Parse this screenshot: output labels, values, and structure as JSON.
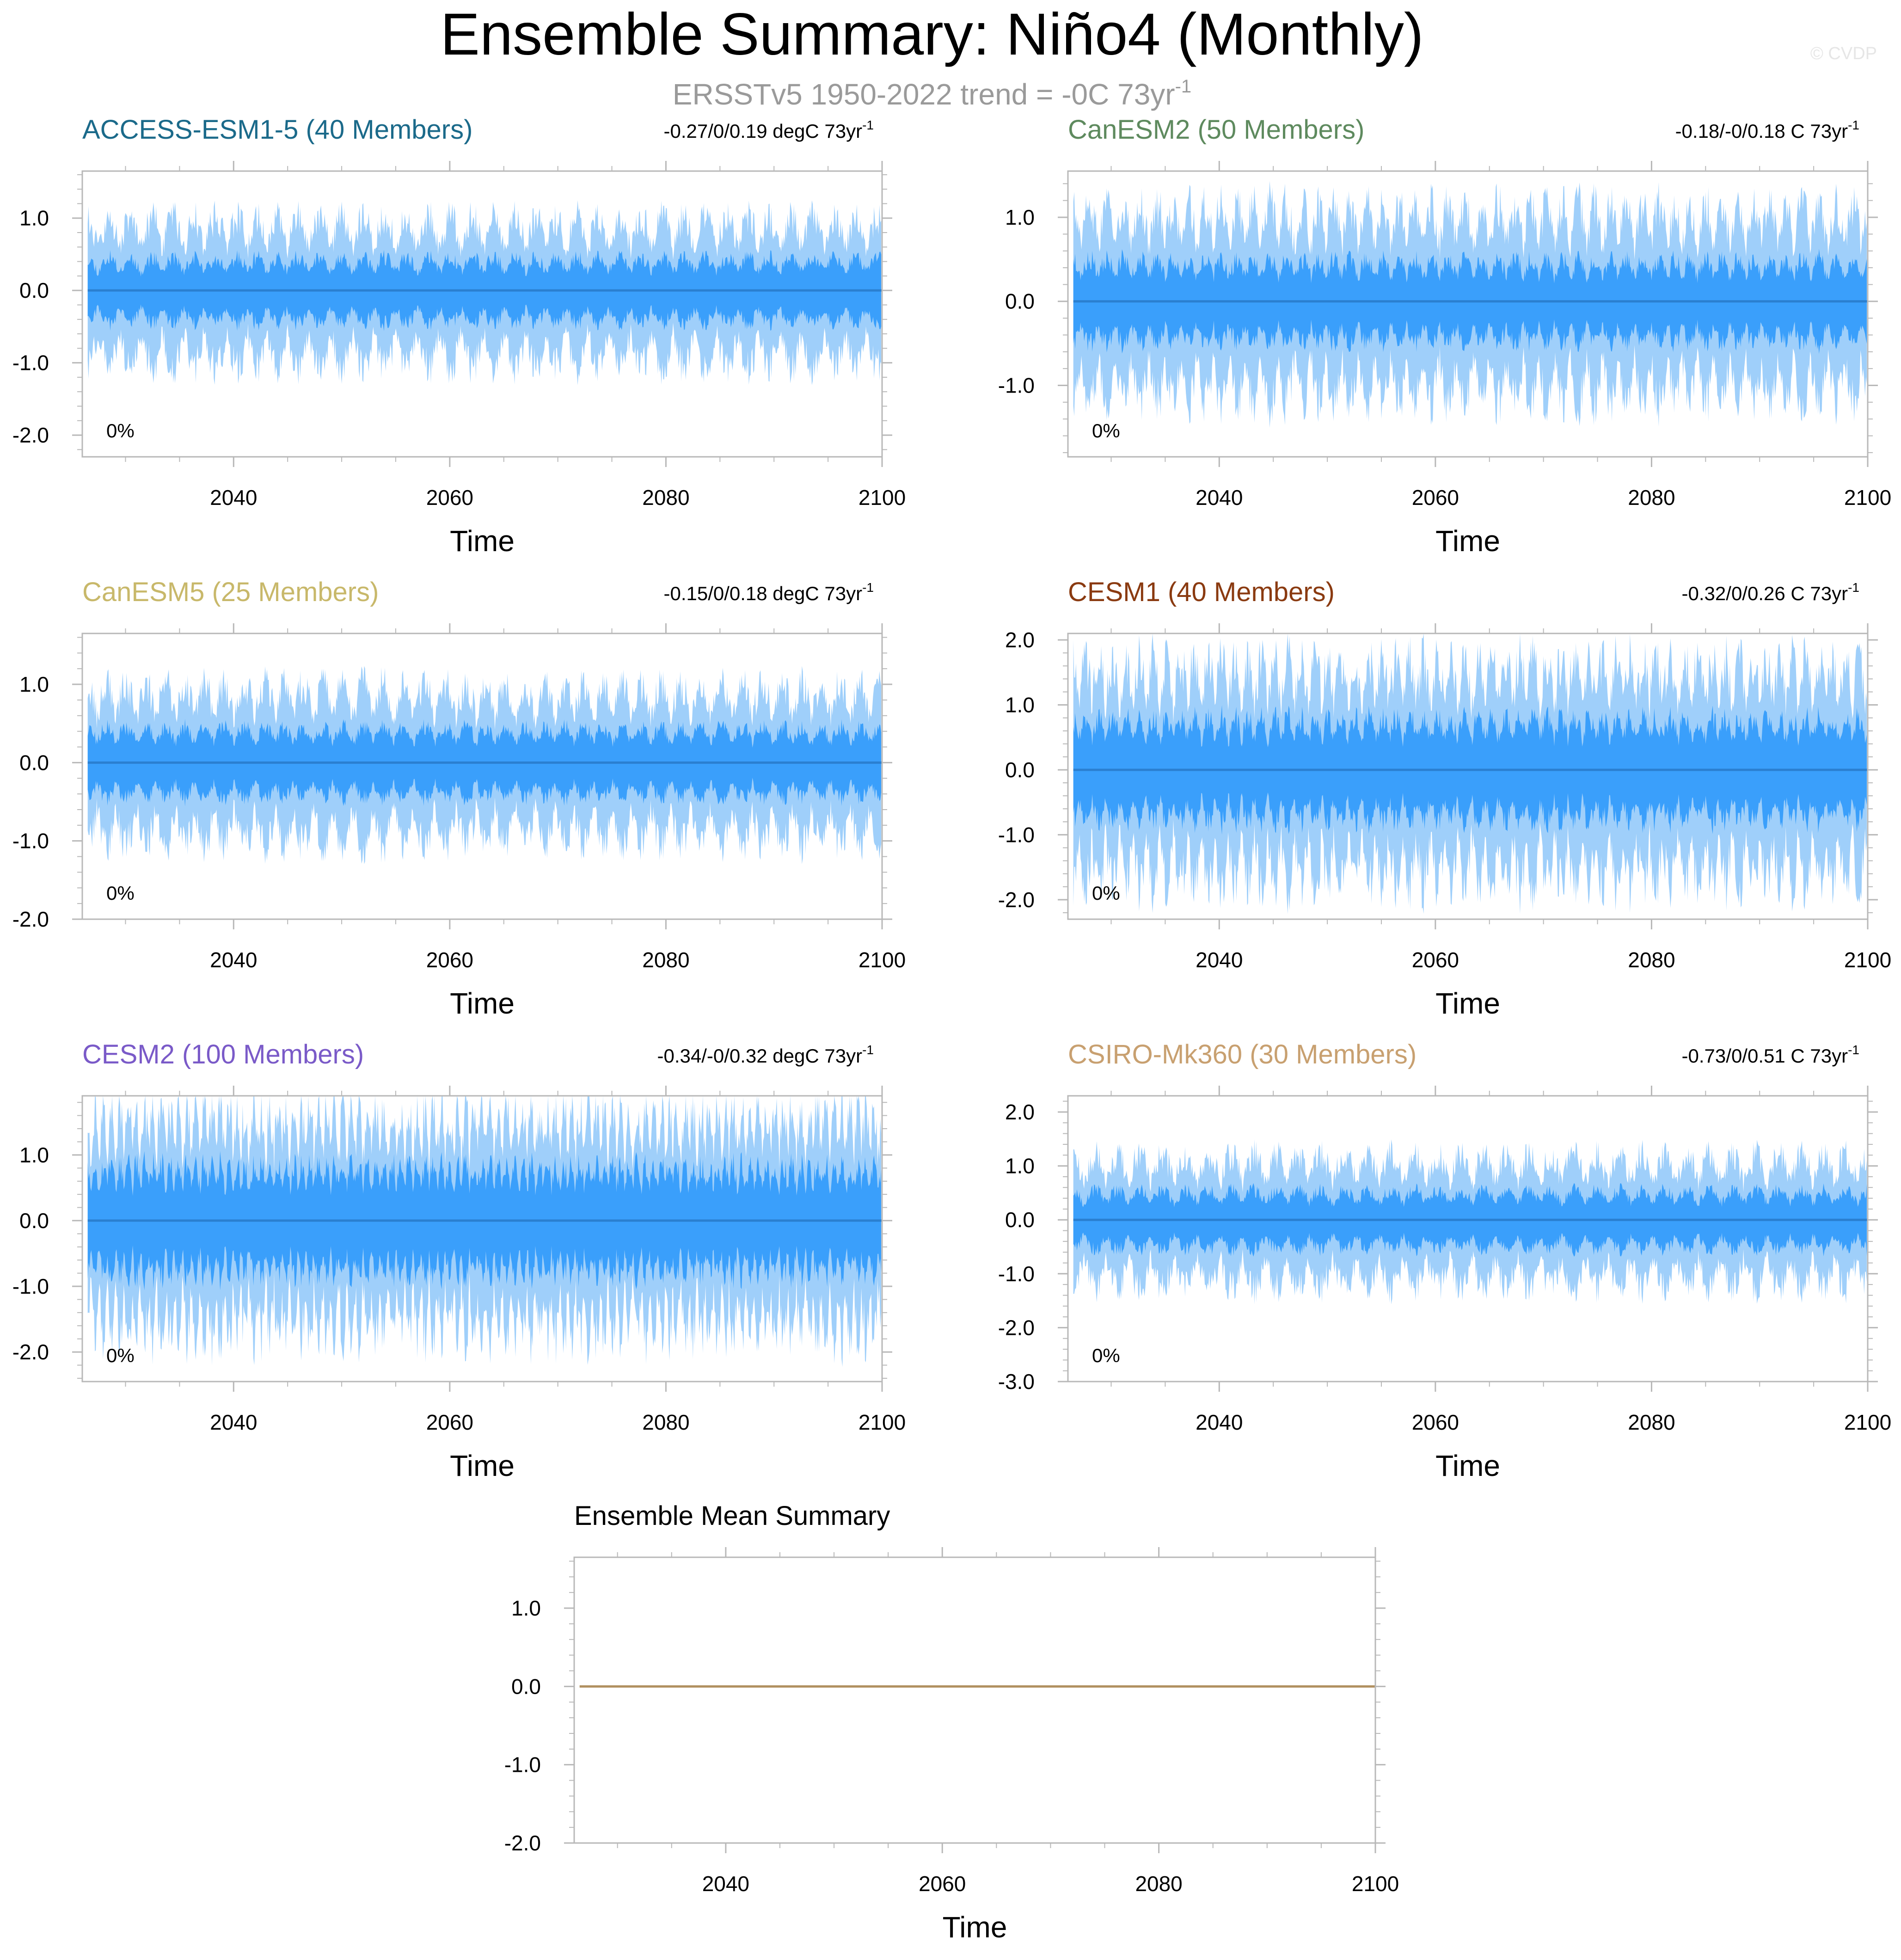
{
  "figure": {
    "title": "Ensemble Summary: Niño4 (Monthly)",
    "subtitle": "ERSSTv5 1950-2022 trend = -0C 73yr",
    "subtitle_sup": "-1",
    "watermark": "© CVDP"
  },
  "colors": {
    "band_outer": "#9fcffa",
    "band_inner": "#3a9ffb",
    "mean_line": "#2a7fd0",
    "ensemble_mean_line": "#b09060",
    "frame": "#b8b8b8",
    "text": "#000000"
  },
  "chart_data": [
    {
      "type": "area",
      "title": "ACCESS-ESM1-5 (40 Members)",
      "title_color": "#1b6a8a",
      "trend_label": "-0.27/0/0.19 degC 73yr",
      "trend_sup": "-1",
      "pct_label": "0%",
      "xlabel": "Time",
      "xlim": [
        2026,
        2100
      ],
      "xticks": [
        2040,
        2060,
        2080,
        2100
      ],
      "xtick_labels": [
        "2040",
        "2060",
        "2080",
        "2100"
      ],
      "ylim": [
        -2.3,
        1.65
      ],
      "yticks": [
        -2.0,
        -1.0,
        0.0,
        1.0
      ],
      "ytick_labels": [
        "-2.0",
        "-1.0",
        "0.0",
        "1.0"
      ],
      "mean": 0.0,
      "outer_amp": 1.0,
      "inner_amp": 0.45,
      "period_months": 48,
      "seed": 11,
      "grid": false
    },
    {
      "type": "area",
      "title": "CanESM2 (50 Members)",
      "title_color": "#5e8a5e",
      "trend_label": "-0.18/-0/0.18 C 73yr",
      "trend_sup": "-1",
      "pct_label": "0%",
      "xlabel": "Time",
      "xlim": [
        2026,
        2100
      ],
      "xticks": [
        2040,
        2060,
        2080,
        2100
      ],
      "xtick_labels": [
        "2040",
        "2060",
        "2080",
        "2100"
      ],
      "ylim": [
        -1.85,
        1.55
      ],
      "yticks": [
        -1.0,
        0.0,
        1.0
      ],
      "ytick_labels": [
        "-1.0",
        "0.0",
        "1.0"
      ],
      "mean": 0.0,
      "outer_amp": 1.15,
      "inner_amp": 0.5,
      "period_months": 36,
      "seed": 23,
      "grid": false
    },
    {
      "type": "area",
      "title": "CanESM5 (25 Members)",
      "title_color": "#c8b86a",
      "trend_label": "-0.15/0/0.18 degC 73yr",
      "trend_sup": "-1",
      "pct_label": "0%",
      "xlabel": "Time",
      "xlim": [
        2026,
        2100
      ],
      "xticks": [
        2040,
        2060,
        2080,
        2100
      ],
      "xtick_labels": [
        "2040",
        "2060",
        "2080",
        "2100"
      ],
      "ylim": [
        -2.0,
        1.65
      ],
      "yticks": [
        -2.0,
        -1.0,
        0.0,
        1.0
      ],
      "ytick_labels": [
        "-2.0",
        "-1.0",
        "0.0",
        "1.0"
      ],
      "mean": 0.0,
      "outer_amp": 1.0,
      "inner_amp": 0.45,
      "period_months": 44,
      "seed": 37,
      "grid": false
    },
    {
      "type": "area",
      "title": "CESM1 (40 Members)",
      "title_color": "#8a3a10",
      "trend_label": "-0.32/0/0.26 C 73yr",
      "trend_sup": "-1",
      "pct_label": "0%",
      "xlabel": "Time",
      "xlim": [
        2026,
        2100
      ],
      "xticks": [
        2040,
        2060,
        2080,
        2100
      ],
      "xtick_labels": [
        "2040",
        "2060",
        "2080",
        "2100"
      ],
      "ylim": [
        -2.3,
        2.1
      ],
      "yticks": [
        -2.0,
        -1.0,
        0.0,
        1.0,
        2.0
      ],
      "ytick_labels": [
        "-2.0",
        "-1.0",
        "0.0",
        "1.0",
        "2.0"
      ],
      "mean": 0.0,
      "outer_amp": 1.7,
      "inner_amp": 0.8,
      "period_months": 30,
      "seed": 41,
      "grid": false
    },
    {
      "type": "area",
      "title": "CESM2 (100 Members)",
      "title_color": "#7a5ac8",
      "trend_label": "-0.34/-0/0.32 degC 73yr",
      "trend_sup": "-1",
      "pct_label": "0%",
      "xlabel": "Time",
      "xlim": [
        2026,
        2100
      ],
      "xticks": [
        2040,
        2060,
        2080,
        2100
      ],
      "xtick_labels": [
        "2040",
        "2060",
        "2080",
        "2100"
      ],
      "ylim": [
        -2.45,
        1.9
      ],
      "yticks": [
        -2.0,
        -1.0,
        0.0,
        1.0
      ],
      "ytick_labels": [
        "-2.0",
        "-1.0",
        "0.0",
        "1.0"
      ],
      "mean": 0.0,
      "outer_amp": 1.7,
      "inner_amp": 0.85,
      "period_months": 18,
      "seed": 53,
      "grid": false
    },
    {
      "type": "area",
      "title": "CSIRO-Mk360 (30 Members)",
      "title_color": "#c8a070",
      "trend_label": "-0.73/0/0.51 C 73yr",
      "trend_sup": "-1",
      "pct_label": "0%",
      "xlabel": "Time",
      "xlim": [
        2026,
        2100
      ],
      "xticks": [
        2040,
        2060,
        2080,
        2100
      ],
      "xtick_labels": [
        "2040",
        "2060",
        "2080",
        "2100"
      ],
      "ylim": [
        -3.0,
        2.3
      ],
      "yticks": [
        -3.0,
        -2.0,
        -1.0,
        0.0,
        1.0,
        2.0
      ],
      "ytick_labels": [
        "-3.0",
        "-2.0",
        "-1.0",
        "0.0",
        "1.0",
        "2.0"
      ],
      "mean": 0.0,
      "outer_amp": 1.2,
      "inner_amp": 0.55,
      "period_months": 50,
      "seed": 67,
      "grid": false
    },
    {
      "type": "line",
      "title": "Ensemble Mean Summary",
      "title_color": "#000000",
      "xlabel": "Time",
      "xlim": [
        2026,
        2100
      ],
      "xticks": [
        2040,
        2060,
        2080,
        2100
      ],
      "xtick_labels": [
        "2040",
        "2060",
        "2080",
        "2100"
      ],
      "ylim": [
        -2.0,
        1.65
      ],
      "yticks": [
        -2.0,
        -1.0,
        0.0,
        1.0
      ],
      "ytick_labels": [
        "-2.0",
        "-1.0",
        "0.0",
        "1.0"
      ],
      "x": [
        2026.5,
        2100
      ],
      "y": [
        0.0,
        0.0
      ],
      "grid": false
    }
  ]
}
